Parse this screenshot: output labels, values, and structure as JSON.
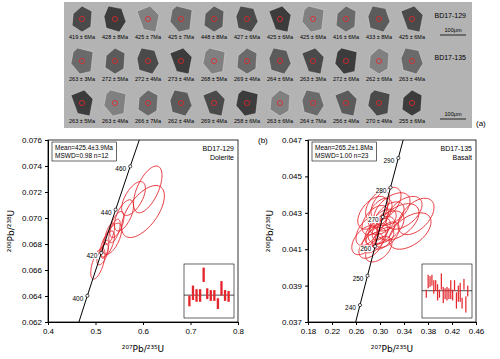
{
  "panel_a": {
    "label": "(a)",
    "samples": [
      {
        "name": "BD17-129",
        "scale_bar": "100μm",
        "rows": [
          [
            "419 ± 6Ma",
            "428 ± 8Ma",
            "425 ± 7Ma",
            "425 ± 7Ma",
            "448 ± 8Ma",
            "427 ± 6Ma",
            "425 ± 6Ma",
            "425 ± 6Ma",
            "416 ± 6Ma",
            "433 ± 8Ma",
            "425 ± 6Ma"
          ]
        ]
      },
      {
        "name": "BD17-135",
        "scale_bar": "100μm",
        "rows": [
          [
            "263 ± 3Ma",
            "272 ± 5Ma",
            "272 ± 4Ma",
            "273 ± 4Ma",
            "268 ± 5Ma",
            "269 ± 4Ma",
            "264 ± 6Ma",
            "263 ± 3Ma",
            "272 ± 6Ma",
            "262 ± 6Ma",
            "263 ± 4Ma"
          ],
          [
            "263 ± 5Ma",
            "263 ± 4Ma",
            "266 ± 7Ma",
            "262 ± 4Ma",
            "269 ± 4Ma",
            "258 ± 6Ma",
            "263 ± 6Ma",
            "264 ± 7Ma",
            "256 ± 4Ma",
            "270 ± 4Ma",
            "255 ± 6Ma"
          ]
        ]
      }
    ]
  },
  "chart_data": [
    {
      "type": "concordia",
      "title": "BD17-129",
      "subtitle": "Dolerite",
      "annotations": [
        "Mean=425.4±3.9Ma",
        "MSWD=0.98 n=12"
      ],
      "x_label": "²⁰⁷Pb/²³⁵U",
      "y_label": "²⁰⁶Pb/²³⁸U",
      "xlim": [
        0.4,
        0.8
      ],
      "xticks": [
        0.4,
        0.5,
        0.6,
        0.7,
        0.8
      ],
      "ylim": [
        0.062,
        0.076
      ],
      "yticks": [
        0.062,
        0.064,
        0.066,
        0.068,
        {
          "value": 0.07,
          "label": "0.070"
        },
        0.072,
        0.074,
        0.076
      ],
      "color": "#e4252b",
      "concordia": {
        "x": [
          0.45389,
          0.48282,
          0.51233,
          0.54241,
          0.57309,
          0.60436
        ],
        "y": [
          0.06072,
          0.06402,
          0.06732,
          0.07064,
          0.07397,
          0.0773
        ],
        "ages": [
          null,
          400,
          420,
          440,
          460,
          null
        ]
      },
      "ellipses": {
        "x": [
          0.515,
          0.525,
          0.53,
          0.52,
          0.54,
          0.535,
          0.545,
          0.56,
          0.58,
          0.6,
          0.61,
          0.505
        ],
        "y": [
          0.0672,
          0.068,
          0.0688,
          0.0676,
          0.069,
          0.0684,
          0.0695,
          0.0702,
          0.0715,
          0.0705,
          0.0722,
          0.0665
        ],
        "x_err": [
          0.012,
          0.015,
          0.01,
          0.008,
          0.012,
          0.02,
          0.015,
          0.02,
          0.025,
          0.045,
          0.03,
          0.015
        ],
        "y_err": [
          0.0008,
          0.001,
          0.0008,
          0.0007,
          0.0009,
          0.0012,
          0.001,
          0.0012,
          0.0013,
          0.002,
          0.0018,
          0.0012
        ],
        "rho": [
          0.6,
          0.6,
          0.6,
          0.6,
          0.6,
          0.6,
          0.6,
          0.6,
          0.6,
          0.6,
          0.6,
          0.6
        ]
      },
      "inset": {
        "values": [
          419,
          428,
          425,
          425,
          448,
          427,
          425,
          425,
          416,
          433,
          425,
          424
        ],
        "errors": [
          6,
          8,
          7,
          7,
          8,
          6,
          6,
          6,
          6,
          8,
          6,
          6
        ],
        "mean": 425.4,
        "ylim": [
          400,
          460
        ],
        "tick_labels": false
      }
    },
    {
      "type": "concordia",
      "panel": "(b)",
      "title": "BD17-135",
      "subtitle": "Basalt",
      "annotations": [
        "Mean=265.2±1.8Ma",
        "MSWD=1.00 n=23"
      ],
      "x_label": "²⁰⁷Pb/²³⁵U",
      "y_label": "²⁰⁶Pb/²³⁸U",
      "xlim": [
        0.18,
        0.46
      ],
      "xticks": [
        0.18,
        0.22,
        0.26,
        {
          "value": 0.3,
          "label": "0.30"
        },
        0.34,
        0.38,
        0.42,
        0.46
      ],
      "ylim": [
        0.037,
        0.047
      ],
      "yticks": [
        0.037,
        0.039,
        0.041,
        0.043,
        0.045,
        0.047
      ],
      "color": "#e4252b",
      "concordia": {
        "x": [
          0.25422,
          0.26664,
          0.27917,
          0.29182,
          0.30459,
          0.31752,
          0.33056,
          0.34375
        ],
        "y": [
          0.03632,
          0.03793,
          0.03954,
          0.04116,
          0.04277,
          0.04439,
          0.04601,
          0.04764
        ],
        "ages": [
          null,
          240,
          250,
          260,
          270,
          280,
          290,
          null
        ]
      },
      "ellipses": {
        "x": [
          0.29,
          0.3,
          0.305,
          0.295,
          0.31,
          0.285,
          0.3,
          0.315,
          0.32,
          0.292,
          0.305,
          0.33,
          0.28,
          0.31,
          0.298,
          0.34,
          0.302,
          0.35,
          0.288,
          0.312,
          0.296,
          0.275,
          0.36
        ],
        "y": [
          0.0415,
          0.042,
          0.0425,
          0.0418,
          0.0422,
          0.0412,
          0.043,
          0.0428,
          0.0432,
          0.0426,
          0.0416,
          0.0425,
          0.042,
          0.0435,
          0.041,
          0.043,
          0.0421,
          0.042,
          0.043,
          0.0418,
          0.0434,
          0.0415,
          0.0428
        ],
        "x_err": [
          0.02,
          0.025,
          0.022,
          0.018,
          0.03,
          0.02,
          0.02,
          0.025,
          0.03,
          0.022,
          0.018,
          0.035,
          0.02,
          0.025,
          0.022,
          0.03,
          0.015,
          0.035,
          0.025,
          0.02,
          0.02,
          0.022,
          0.03
        ],
        "y_err": [
          0.0007,
          0.0008,
          0.0007,
          0.0006,
          0.0009,
          0.0007,
          0.0008,
          0.0008,
          0.0009,
          0.0008,
          0.0006,
          0.001,
          0.0008,
          0.0009,
          0.0007,
          0.0009,
          0.0006,
          0.001,
          0.0009,
          0.0007,
          0.0008,
          0.0008,
          0.001
        ],
        "rho": [
          0.5,
          0.5,
          0.5,
          0.5,
          0.5,
          0.5,
          0.5,
          0.5,
          0.5,
          0.5,
          0.5,
          0.5,
          0.5,
          0.5,
          0.5,
          0.5,
          0.5,
          0.5,
          0.5,
          0.5,
          0.5,
          0.5,
          0.5
        ]
      },
      "inset": {
        "values": [
          263,
          272,
          272,
          273,
          268,
          269,
          264,
          263,
          272,
          262,
          263,
          263,
          263,
          266,
          262,
          269,
          258,
          263,
          264,
          256,
          270,
          255,
          265
        ],
        "errors": [
          3,
          5,
          4,
          4,
          5,
          4,
          6,
          3,
          6,
          6,
          4,
          5,
          4,
          7,
          4,
          4,
          6,
          6,
          7,
          4,
          4,
          6,
          4
        ],
        "mean": 265.2,
        "ylim": [
          245,
          285
        ],
        "tick_labels": false
      }
    }
  ]
}
